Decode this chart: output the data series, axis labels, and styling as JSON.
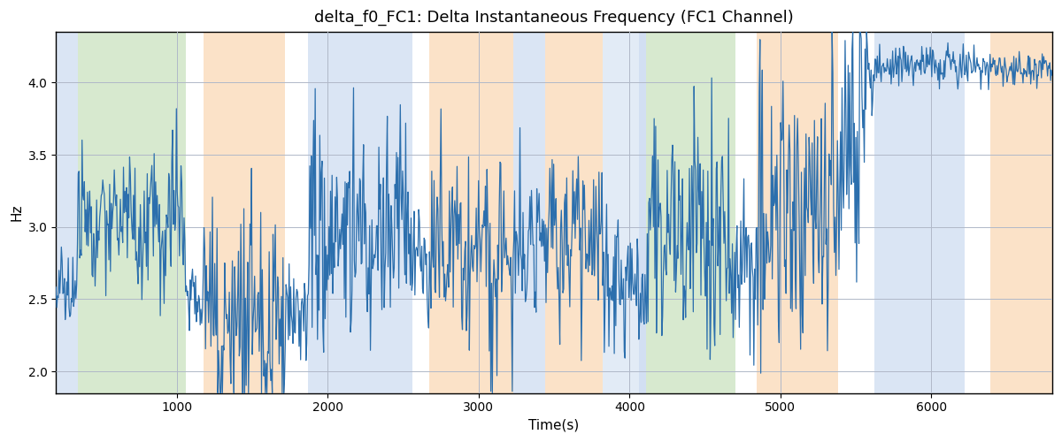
{
  "title": "delta_f0_FC1: Delta Instantaneous Frequency (FC1 Channel)",
  "xlabel": "Time(s)",
  "ylabel": "Hz",
  "xlim": [
    200,
    6800
  ],
  "ylim": [
    1.85,
    4.35
  ],
  "yticks": [
    2.0,
    2.5,
    3.0,
    3.5,
    4.0
  ],
  "xticks": [
    1000,
    2000,
    3000,
    4000,
    5000,
    6000
  ],
  "line_color": "#2c6fad",
  "line_width": 0.9,
  "bg_color": "#ffffff",
  "grid_color": "#b0b8c8",
  "bands": [
    {
      "xmin": 200,
      "xmax": 345,
      "color": "#aec6e8",
      "alpha": 0.45
    },
    {
      "xmin": 345,
      "xmax": 1060,
      "color": "#b6d7a8",
      "alpha": 0.55
    },
    {
      "xmin": 1060,
      "xmax": 1175,
      "color": "#ffffff",
      "alpha": 0.0
    },
    {
      "xmin": 1175,
      "xmax": 1720,
      "color": "#f9cb9c",
      "alpha": 0.55
    },
    {
      "xmin": 1720,
      "xmax": 1870,
      "color": "#ffffff",
      "alpha": 0.0
    },
    {
      "xmin": 1870,
      "xmax": 2560,
      "color": "#aec6e8",
      "alpha": 0.45
    },
    {
      "xmin": 2560,
      "xmax": 2670,
      "color": "#ffffff",
      "alpha": 0.0
    },
    {
      "xmin": 2670,
      "xmax": 3230,
      "color": "#f9cb9c",
      "alpha": 0.55
    },
    {
      "xmin": 3230,
      "xmax": 3440,
      "color": "#aec6e8",
      "alpha": 0.45
    },
    {
      "xmin": 3440,
      "xmax": 3820,
      "color": "#f9cb9c",
      "alpha": 0.55
    },
    {
      "xmin": 3820,
      "xmax": 4060,
      "color": "#aec6e8",
      "alpha": 0.35
    },
    {
      "xmin": 4060,
      "xmax": 4110,
      "color": "#aec6e8",
      "alpha": 0.55
    },
    {
      "xmin": 4110,
      "xmax": 4700,
      "color": "#b6d7a8",
      "alpha": 0.55
    },
    {
      "xmin": 4700,
      "xmax": 4840,
      "color": "#ffffff",
      "alpha": 0.0
    },
    {
      "xmin": 4840,
      "xmax": 5380,
      "color": "#f9cb9c",
      "alpha": 0.55
    },
    {
      "xmin": 5380,
      "xmax": 5620,
      "color": "#ffffff",
      "alpha": 0.0
    },
    {
      "xmin": 5620,
      "xmax": 6220,
      "color": "#aec6e8",
      "alpha": 0.45
    },
    {
      "xmin": 6220,
      "xmax": 6390,
      "color": "#ffffff",
      "alpha": 0.0
    },
    {
      "xmin": 6390,
      "xmax": 6800,
      "color": "#f9cb9c",
      "alpha": 0.55
    }
  ],
  "seed": 42,
  "n_points": 1300
}
